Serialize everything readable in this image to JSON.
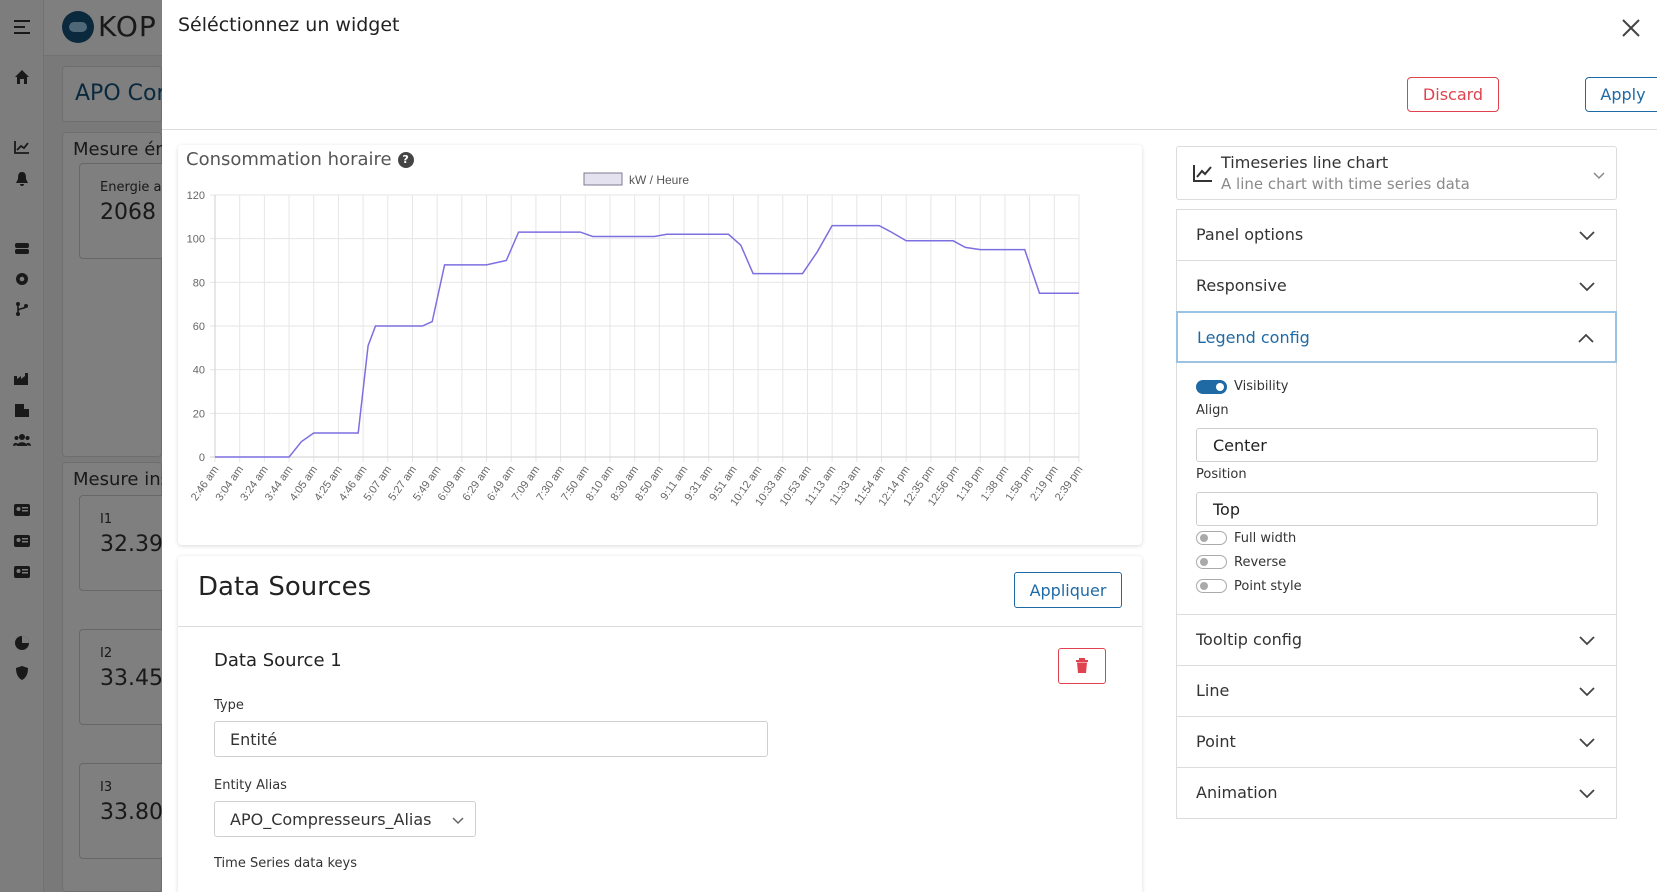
{
  "background": {
    "logo_text": "KOP",
    "page_title": "APO Con",
    "card1_title": "Mesure én",
    "card1_box_label": "Energie ac",
    "card1_box_value": "2068",
    "card2_title": "Mesure ins",
    "boxes": [
      {
        "label": "I1",
        "value": "32.39"
      },
      {
        "label": "I2",
        "value": "33.45"
      },
      {
        "label": "I3",
        "value": "33.80"
      }
    ]
  },
  "modal": {
    "title": "Séléctionnez un widget",
    "discard_label": "Discard",
    "apply_label": "Apply"
  },
  "preview": {
    "title": "Consommation horaire",
    "help_glyph": "?"
  },
  "chart_data": {
    "type": "line",
    "title": "Consommation horaire",
    "legend_position": "top",
    "grid": true,
    "ylim": [
      0,
      120
    ],
    "yticks": [
      0,
      20,
      40,
      60,
      80,
      100,
      120
    ],
    "x": [
      "2:46 am",
      "3:04 am",
      "3:24 am",
      "3:44 am",
      "4:05 am",
      "4:25 am",
      "4:46 am",
      "5:07 am",
      "5:27 am",
      "5:49 am",
      "6:09 am",
      "6:29 am",
      "6:49 am",
      "7:09 am",
      "7:30 am",
      "7:50 am",
      "8:10 am",
      "8:30 am",
      "8:50 am",
      "9:11 am",
      "9:31 am",
      "9:51 am",
      "10:12 am",
      "10:33 am",
      "10:53 am",
      "11:13 am",
      "11:33 am",
      "11:54 am",
      "12:14 pm",
      "12:35 pm",
      "12:56 pm",
      "1:18 pm",
      "1:38 pm",
      "1:58 pm",
      "2:19 pm",
      "2:39 pm"
    ],
    "series": [
      {
        "name": "kW / Heure",
        "color": "#7c6fe0",
        "points": [
          [
            0,
            0
          ],
          [
            1,
            0
          ],
          [
            2,
            0
          ],
          [
            3,
            0
          ],
          [
            3.5,
            7
          ],
          [
            4,
            11
          ],
          [
            5,
            11
          ],
          [
            5.8,
            11
          ],
          [
            6.2,
            51
          ],
          [
            6.5,
            60
          ],
          [
            8.4,
            60
          ],
          [
            8.8,
            62
          ],
          [
            9.3,
            88
          ],
          [
            11,
            88
          ],
          [
            11.8,
            90
          ],
          [
            12.3,
            103
          ],
          [
            14.8,
            103
          ],
          [
            15.3,
            101
          ],
          [
            17.8,
            101
          ],
          [
            18.3,
            102
          ],
          [
            20.8,
            102
          ],
          [
            21.3,
            97
          ],
          [
            21.8,
            84
          ],
          [
            23.8,
            84
          ],
          [
            24.4,
            94
          ],
          [
            25,
            106
          ],
          [
            26.9,
            106
          ],
          [
            27.4,
            103
          ],
          [
            28,
            99
          ],
          [
            29.9,
            99
          ],
          [
            30.4,
            96
          ],
          [
            31,
            95
          ],
          [
            32.8,
            95
          ],
          [
            33.4,
            75
          ],
          [
            35,
            75
          ]
        ]
      }
    ]
  },
  "data_sources": {
    "title": "Data Sources",
    "apply_label": "Appliquer",
    "source_title": "Data Source 1",
    "type_label": "Type",
    "type_value": "Entité",
    "alias_label": "Entity Alias",
    "alias_value": "APO_Compresseurs_Alias",
    "keys_label": "Time Series data keys"
  },
  "widget_select": {
    "name": "Timeseries line chart",
    "description": "A line chart with time series data"
  },
  "sections": {
    "panel_options": "Panel options",
    "responsive": "Responsive",
    "legend_config": "Legend config",
    "tooltip_config": "Tooltip config",
    "line": "Line",
    "point": "Point",
    "animation": "Animation"
  },
  "legend_config": {
    "visibility_label": "Visibility",
    "align_label": "Align",
    "align_value": "Center",
    "position_label": "Position",
    "position_value": "Top",
    "full_width_label": "Full width",
    "reverse_label": "Reverse",
    "point_style_label": "Point style"
  }
}
